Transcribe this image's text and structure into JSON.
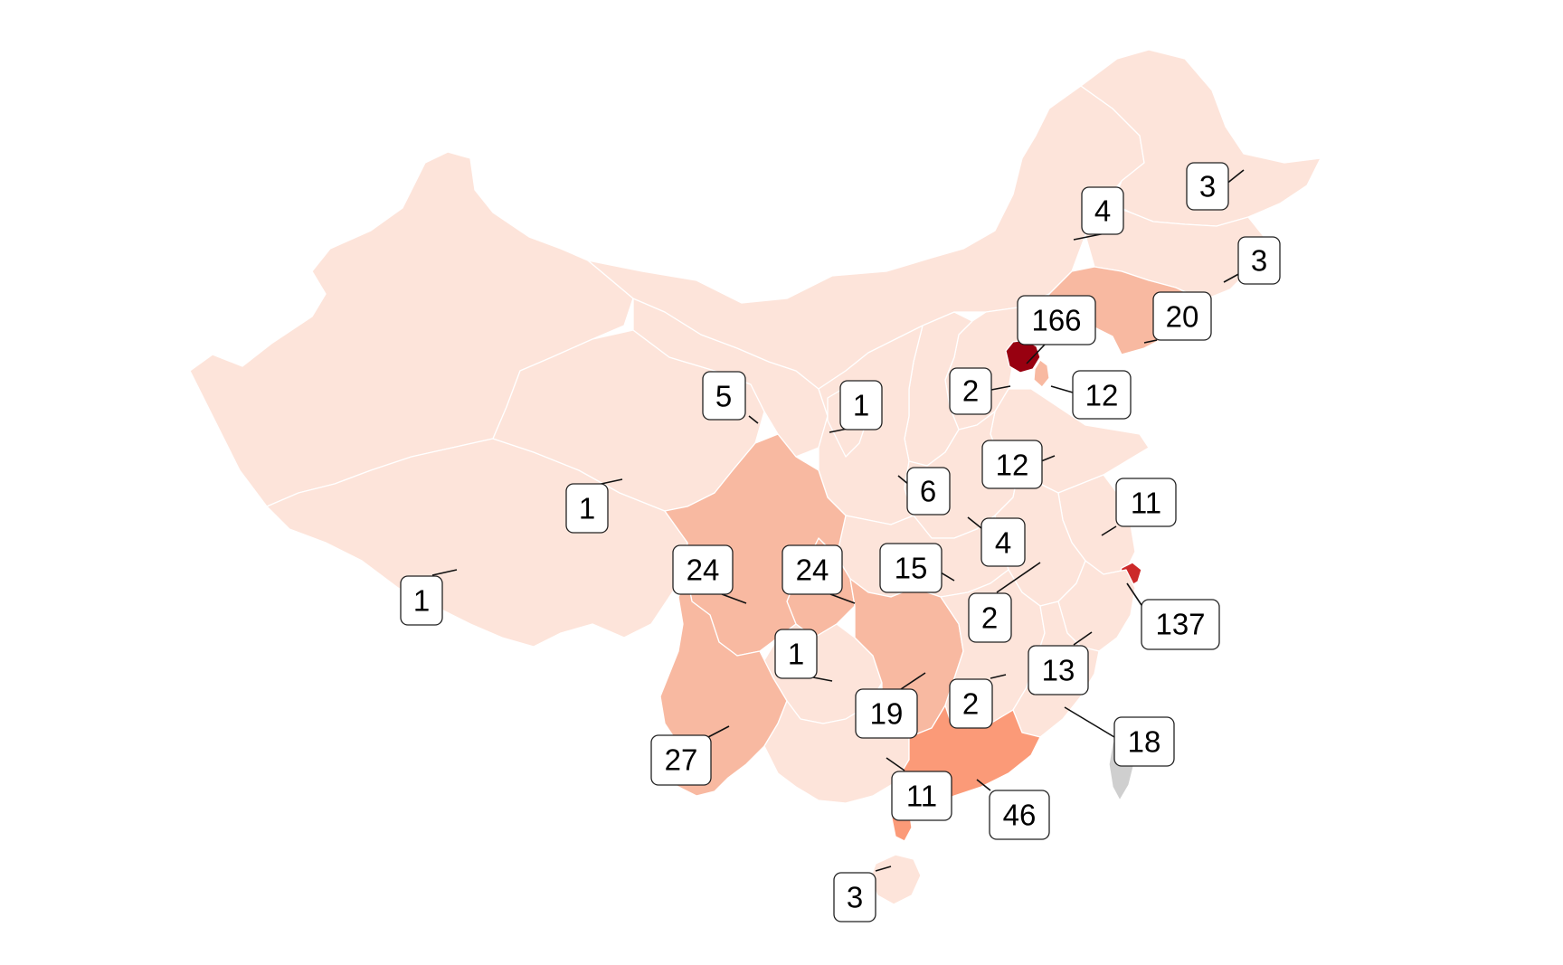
{
  "map": {
    "colors": {
      "low": "#fde4da",
      "mid": "#f8b9a1",
      "high": "#fb9a78",
      "top_light": "#cc2a2a",
      "top_dark": "#980010",
      "no_data": "#cfcfcf",
      "border": "#ffffff"
    },
    "labels": [
      {
        "id": "heilongjiang",
        "value": "3"
      },
      {
        "id": "inner-mongolia",
        "value": "4"
      },
      {
        "id": "jilin",
        "value": "3"
      },
      {
        "id": "beijing",
        "value": "166"
      },
      {
        "id": "liaoning",
        "value": "20"
      },
      {
        "id": "hebei",
        "value": "2"
      },
      {
        "id": "tianjin",
        "value": "12"
      },
      {
        "id": "gansu",
        "value": "5"
      },
      {
        "id": "ningxia",
        "value": "1"
      },
      {
        "id": "shandong",
        "value": "12"
      },
      {
        "id": "shaanxi",
        "value": "6"
      },
      {
        "id": "qinghai",
        "value": "1"
      },
      {
        "id": "jiangsu",
        "value": "11"
      },
      {
        "id": "henan",
        "value": "4"
      },
      {
        "id": "xinjiang",
        "value": "1"
      },
      {
        "id": "sichuan",
        "value": "24"
      },
      {
        "id": "chongqing",
        "value": "24"
      },
      {
        "id": "hubei",
        "value": "15"
      },
      {
        "id": "anhui",
        "value": "2"
      },
      {
        "id": "shanghai",
        "value": "137"
      },
      {
        "id": "guizhou",
        "value": "1"
      },
      {
        "id": "zhejiang",
        "value": "13"
      },
      {
        "id": "hunan",
        "value": "19"
      },
      {
        "id": "jiangxi",
        "value": "2"
      },
      {
        "id": "fujian",
        "value": "18"
      },
      {
        "id": "yunnan",
        "value": "27"
      },
      {
        "id": "guangxi",
        "value": "11"
      },
      {
        "id": "guangdong",
        "value": "46"
      },
      {
        "id": "hainan",
        "value": "3"
      }
    ]
  }
}
